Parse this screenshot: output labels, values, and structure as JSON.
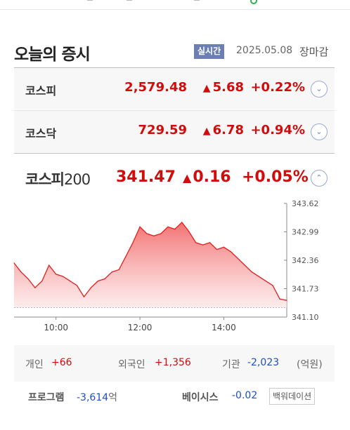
{
  "header": {
    "title": "오늘의 증시",
    "badge": "실시간",
    "date": "2025.05.08",
    "status": "장마감"
  },
  "indices": [
    {
      "name": "코스피",
      "value": "2,579.48",
      "change": "5.68",
      "rate": "+0.22%",
      "direction": "up"
    },
    {
      "name": "코스닥",
      "value": "729.59",
      "change": "6.78",
      "rate": "+0.94%",
      "direction": "up"
    }
  ],
  "kospi200": {
    "name": "코스피",
    "name_num": "200",
    "value": "341.47",
    "change": "0.16",
    "rate": "+0.05%",
    "direction": "up"
  },
  "icons": {
    "up_arrow": "▲",
    "expand": "chevron-down-icon",
    "collapse": "chevron-up-icon"
  },
  "colors": {
    "up": "#d10c0c",
    "down": "#1b4fc4",
    "badge": "#6b7fb3"
  },
  "chart_data": {
    "type": "area",
    "x_start": "09:00",
    "x_end": "15:30",
    "x_tick_labels": [
      "10:00",
      "12:00",
      "14:00"
    ],
    "y_tick_labels": [
      "343.62",
      "342.99",
      "342.36",
      "341.73",
      "341.10"
    ],
    "ylim": [
      341.1,
      343.62
    ],
    "previous_close": 341.31,
    "series": [
      {
        "x": [
          "09:00",
          "09:10",
          "09:20",
          "09:30",
          "09:40",
          "09:50",
          "10:00",
          "10:10",
          "10:20",
          "10:30",
          "10:40",
          "10:50",
          "11:00",
          "11:10",
          "11:20",
          "11:30",
          "11:40",
          "11:50",
          "12:00",
          "12:10",
          "12:20",
          "12:30",
          "12:40",
          "12:50",
          "13:00",
          "13:10",
          "13:20",
          "13:30",
          "13:40",
          "13:50",
          "14:00",
          "14:10",
          "14:20",
          "14:30",
          "14:40",
          "14:50",
          "15:00",
          "15:10",
          "15:20",
          "15:30"
        ],
        "values": [
          342.3,
          342.1,
          341.95,
          341.75,
          341.9,
          342.25,
          342.05,
          342.0,
          341.9,
          341.8,
          341.55,
          341.75,
          341.9,
          341.95,
          342.1,
          342.15,
          342.45,
          342.75,
          343.1,
          342.95,
          342.9,
          342.95,
          343.1,
          343.05,
          343.2,
          343.0,
          342.75,
          342.7,
          342.75,
          342.6,
          342.65,
          342.55,
          342.4,
          342.25,
          342.1,
          342.0,
          341.9,
          341.8,
          341.5,
          341.47
        ]
      }
    ]
  },
  "investors": {
    "individual_label": "개인",
    "individual_value": "+66",
    "foreign_label": "외국인",
    "foreign_value": "+1,356",
    "institution_label": "기관",
    "institution_value": "-2,023",
    "unit": "(억원)"
  },
  "program": {
    "label": "프로그램",
    "value": "-3,614",
    "unit": "억"
  },
  "basis": {
    "label": "베이시스",
    "value": "-0.02",
    "unit": "백워데이션"
  }
}
